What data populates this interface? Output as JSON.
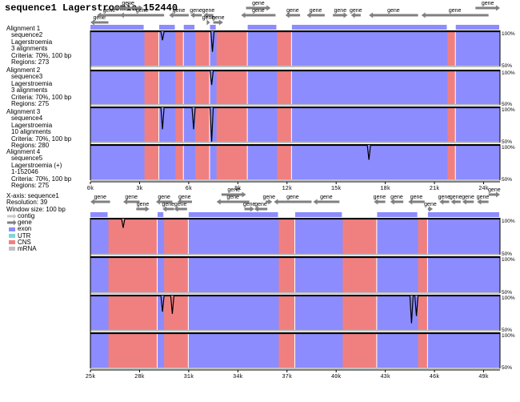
{
  "title": "sequence1 Lagerstroemia 152440",
  "colors": {
    "exon": "#8c8cff",
    "cns": "#f08080",
    "utr": "#7fd7d7",
    "mrna": "#c0c0c0",
    "contig": "#c8c8c8",
    "gene": "#808080",
    "frame": "#000000"
  },
  "alignments": [
    {
      "title": "Alignment 1",
      "lines": [
        "sequence2",
        "Lagerstroemia",
        "3 alignments",
        "Criteria: 70%, 100 bp",
        "Regions: 273"
      ]
    },
    {
      "title": "Alignment 2",
      "lines": [
        "sequence3",
        "Lagerstroemia",
        "3 alignments",
        "Criteria: 70%, 100 bp",
        "Regions: 275"
      ]
    },
    {
      "title": "Alignment 3",
      "lines": [
        "sequence4",
        "Lagerstroemia",
        "10 alignments",
        "Criteria: 70%, 100 bp",
        "Regions: 280"
      ]
    },
    {
      "title": "Alignment 4",
      "lines": [
        "sequence5",
        "Lagerstroemia (+)",
        "1-152046",
        "Criteria: 70%, 100 bp",
        "Regions: 275"
      ]
    }
  ],
  "xaxis_info": [
    "X-axis: sequence1",
    "Resolution: 39",
    "Window size: 100 bp"
  ],
  "legend": [
    {
      "label": "contig",
      "color": "#c8c8c8",
      "icon": "contig-arrow-icon"
    },
    {
      "label": "gene",
      "color": "#808080",
      "icon": "gene-arrow-icon"
    },
    {
      "label": "exon",
      "color": "#8c8cff",
      "icon": "exon-swatch"
    },
    {
      "label": "UTR",
      "color": "#7fd7d7",
      "icon": "utr-swatch"
    },
    {
      "label": "CNS",
      "color": "#f08080",
      "icon": "cns-swatch"
    },
    {
      "label": "mRNA",
      "color": "#c0c0c0",
      "icon": "mrna-swatch"
    }
  ],
  "chart_data": [
    {
      "type": "area",
      "title": "sequence1 Lagerstroemia 152440",
      "xlabel": "",
      "ylabel": "",
      "xlim": [
        0,
        25000
      ],
      "ylim": [
        50,
        100
      ],
      "y_ticks": [
        "100%",
        "50%"
      ],
      "x_ticks": [
        {
          "value": 0,
          "label": "0k"
        },
        {
          "value": 3000,
          "label": "3k"
        },
        {
          "value": 6000,
          "label": "6k"
        },
        {
          "value": 9000,
          "label": "9k"
        },
        {
          "value": 12000,
          "label": "12k"
        },
        {
          "value": 15000,
          "label": "15k"
        },
        {
          "value": 18000,
          "label": "18k"
        },
        {
          "value": 21000,
          "label": "21k"
        },
        {
          "value": 24000,
          "label": "24k"
        }
      ],
      "genes": [
        {
          "label": "gene",
          "start": 0,
          "end": 1100,
          "strand": "-",
          "row": 2
        },
        {
          "label": "gene",
          "start": 400,
          "end": 1900,
          "strand": "-",
          "row": 1
        },
        {
          "label": "gene",
          "start": 1400,
          "end": 3200,
          "strand": "+",
          "row": 0
        },
        {
          "label": "gene",
          "start": 1800,
          "end": 4500,
          "strand": "-",
          "row": 1
        },
        {
          "label": "gene",
          "start": 4800,
          "end": 6000,
          "strand": "-",
          "row": 1
        },
        {
          "label": "gene",
          "start": 6100,
          "end": 6800,
          "strand": "-",
          "row": 1
        },
        {
          "label": "gene",
          "start": 6900,
          "end": 7500,
          "strand": "-",
          "row": 1
        },
        {
          "label": "gene",
          "start": 7100,
          "end": 7300,
          "strand": "+",
          "row": 2
        },
        {
          "label": "gene",
          "start": 7500,
          "end": 8100,
          "strand": "+",
          "row": 2
        },
        {
          "label": "gene",
          "start": 9500,
          "end": 11000,
          "strand": "+",
          "row": 0
        },
        {
          "label": "gene",
          "start": 9200,
          "end": 11300,
          "strand": "-",
          "row": 1
        },
        {
          "label": "gene",
          "start": 11900,
          "end": 12800,
          "strand": "-",
          "row": 1
        },
        {
          "label": "gene",
          "start": 13200,
          "end": 14300,
          "strand": "-",
          "row": 1
        },
        {
          "label": "gene",
          "start": 14800,
          "end": 15700,
          "strand": "+",
          "row": 1
        },
        {
          "label": "gene",
          "start": 15900,
          "end": 16500,
          "strand": "-",
          "row": 1
        },
        {
          "label": "gene",
          "start": 17000,
          "end": 20000,
          "strand": "-",
          "row": 1
        },
        {
          "label": "gene",
          "start": 20200,
          "end": 24300,
          "strand": "-",
          "row": 1
        },
        {
          "label": "gene",
          "start": 23500,
          "end": 25000,
          "strand": "+",
          "row": 0
        }
      ],
      "regions": {
        "cns": [
          [
            3300,
            4200
          ],
          [
            5200,
            5700
          ],
          [
            6400,
            7300
          ],
          [
            7700,
            9600
          ],
          [
            11400,
            12300
          ],
          [
            21800,
            22300
          ]
        ],
        "exon": [
          [
            0,
            3300
          ],
          [
            4200,
            5200
          ],
          [
            5700,
            6400
          ],
          [
            7300,
            7700
          ],
          [
            9600,
            11400
          ],
          [
            12300,
            21800
          ],
          [
            22300,
            25000
          ]
        ],
        "conservation_dips": [
          {
            "track": 1,
            "x": 7450,
            "min": 72
          },
          {
            "track": 1,
            "x": 4400,
            "min": 88
          },
          {
            "track": 2,
            "x": 7400,
            "min": 80
          },
          {
            "track": 3,
            "x": 4400,
            "min": 70
          },
          {
            "track": 3,
            "x": 6300,
            "min": 70
          },
          {
            "track": 3,
            "x": 7400,
            "min": 52
          },
          {
            "track": 4,
            "x": 17000,
            "min": 80
          }
        ]
      }
    },
    {
      "type": "area",
      "xlabel": "",
      "ylabel": "",
      "xlim": [
        25000,
        50000
      ],
      "ylim": [
        50,
        100
      ],
      "y_ticks": [
        "100%",
        "50%"
      ],
      "x_ticks": [
        {
          "value": 25000,
          "label": "25k"
        },
        {
          "value": 28000,
          "label": "28k"
        },
        {
          "value": 31000,
          "label": "31k"
        },
        {
          "value": 34000,
          "label": "34k"
        },
        {
          "value": 37000,
          "label": "37k"
        },
        {
          "value": 40000,
          "label": "40k"
        },
        {
          "value": 43000,
          "label": "43k"
        },
        {
          "value": 46000,
          "label": "46k"
        },
        {
          "value": 49000,
          "label": "49k"
        }
      ],
      "genes": [
        {
          "label": "gene",
          "start": 25000,
          "end": 26200,
          "strand": "-",
          "row": 1
        },
        {
          "label": "gene",
          "start": 27000,
          "end": 28000,
          "strand": "-",
          "row": 1
        },
        {
          "label": "gene",
          "start": 27800,
          "end": 28600,
          "strand": "+",
          "row": 2
        },
        {
          "label": "gene",
          "start": 29000,
          "end": 30000,
          "strand": "-",
          "row": 1
        },
        {
          "label": "gene",
          "start": 29400,
          "end": 30100,
          "strand": "-",
          "row": 2
        },
        {
          "label": "gene",
          "start": 30100,
          "end": 30900,
          "strand": "-",
          "row": 2
        },
        {
          "label": "gene",
          "start": 30300,
          "end": 31200,
          "strand": "-",
          "row": 1
        },
        {
          "label": "gene",
          "start": 33000,
          "end": 34500,
          "strand": "+",
          "row": 0
        },
        {
          "label": "gene",
          "start": 32700,
          "end": 34700,
          "strand": "-",
          "row": 1
        },
        {
          "label": "gene",
          "start": 34400,
          "end": 35000,
          "strand": "+",
          "row": 2
        },
        {
          "label": "gene",
          "start": 35000,
          "end": 35800,
          "strand": "-",
          "row": 2
        },
        {
          "label": "gene",
          "start": 35700,
          "end": 36100,
          "strand": "+",
          "row": 1
        },
        {
          "label": "gene",
          "start": 36200,
          "end": 38500,
          "strand": "-",
          "row": 1
        },
        {
          "label": "gene",
          "start": 38600,
          "end": 40200,
          "strand": "-",
          "row": 1
        },
        {
          "label": "gene",
          "start": 42300,
          "end": 43000,
          "strand": "-",
          "row": 1
        },
        {
          "label": "gene",
          "start": 43300,
          "end": 44100,
          "strand": "-",
          "row": 1
        },
        {
          "label": "gene",
          "start": 44400,
          "end": 45400,
          "strand": "-",
          "row": 1
        },
        {
          "label": "gene",
          "start": 45600,
          "end": 45900,
          "strand": "+",
          "row": 2
        },
        {
          "label": "gene",
          "start": 46300,
          "end": 46900,
          "strand": "-",
          "row": 1
        },
        {
          "label": "gene",
          "start": 47000,
          "end": 47600,
          "strand": "-",
          "row": 1
        },
        {
          "label": "gene",
          "start": 47700,
          "end": 48400,
          "strand": "-",
          "row": 1
        },
        {
          "label": "gene",
          "start": 48600,
          "end": 49300,
          "strand": "-",
          "row": 1
        },
        {
          "label": "gene",
          "start": 49300,
          "end": 50000,
          "strand": "+",
          "row": 0
        }
      ],
      "regions": {
        "cns": [
          [
            26100,
            29100
          ],
          [
            29500,
            31000
          ],
          [
            36500,
            37500
          ],
          [
            40400,
            42500
          ],
          [
            45000,
            45600
          ]
        ],
        "exon": [
          [
            25000,
            26100
          ],
          [
            29100,
            29500
          ],
          [
            31000,
            36500
          ],
          [
            37500,
            40400
          ],
          [
            42500,
            45000
          ],
          [
            45600,
            50000
          ]
        ],
        "conservation_dips": [
          {
            "track": 1,
            "x": 27000,
            "min": 88
          },
          {
            "track": 3,
            "x": 29400,
            "min": 78
          },
          {
            "track": 3,
            "x": 30000,
            "min": 75
          },
          {
            "track": 3,
            "x": 44600,
            "min": 62
          },
          {
            "track": 3,
            "x": 44900,
            "min": 72
          }
        ]
      }
    }
  ]
}
